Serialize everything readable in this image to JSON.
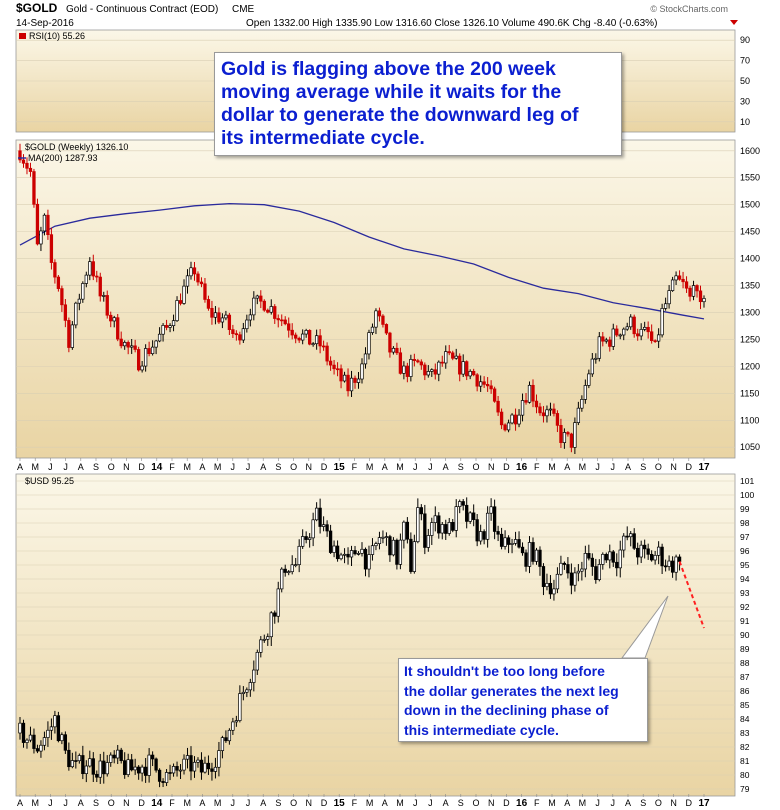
{
  "header": {
    "symbol": "$GOLD",
    "description": "Gold - Continuous Contract (EOD)",
    "exchange": "CME",
    "date": "14-Sep-2016",
    "ohlc": "Open 1332.00  High 1335.90  Low 1316.60  Close 1326.10  Volume 490.6K  Chg -8.40 (-0.63%)",
    "watermark": "© StockCharts.com"
  },
  "colors": {
    "panel_bg_top": "#fbf7e8",
    "panel_bg_bottom": "#e9d4a3",
    "up_candle": "#000000",
    "down_candle": "#cc0000",
    "ma_line": "#2a2a9c",
    "projection": "#ff2020",
    "callout_text": "#0b1fd0"
  },
  "annotations": {
    "gold_callout": [
      "Gold is flagging above the 200 week",
      "moving average while it waits for the",
      "dollar to generate the downward leg of",
      "its intermediate cycle."
    ],
    "usd_callout": [
      "It shouldn't be too long before",
      "the dollar generates the next leg",
      "down in the declining phase of",
      "this intermediate cycle."
    ]
  },
  "chart_data": [
    {
      "type": "line",
      "panel": "rsi",
      "label": "RSI(10) 55.26",
      "ylim": [
        0,
        100
      ],
      "y_ticks": [
        10,
        30,
        50,
        70,
        90
      ],
      "last_value": 55.26
    },
    {
      "type": "candlestick",
      "panel": "gold",
      "label": "$GOLD (Weekly) 1326.10",
      "ma_label": "MA(200) 1287.93",
      "ylim": [
        1030,
        1620
      ],
      "y_ticks": [
        1050,
        1100,
        1150,
        1200,
        1250,
        1300,
        1350,
        1400,
        1450,
        1500,
        1550,
        1600
      ],
      "x_labels": [
        "A",
        "M",
        "J",
        "J",
        "A",
        "S",
        "O",
        "N",
        "D",
        "14",
        "F",
        "M",
        "A",
        "M",
        "J",
        "J",
        "A",
        "S",
        "O",
        "N",
        "D",
        "15",
        "F",
        "M",
        "A",
        "M",
        "J",
        "J",
        "A",
        "S",
        "O",
        "N",
        "D",
        "16",
        "F",
        "M",
        "A",
        "M",
        "J",
        "J",
        "A",
        "S",
        "O",
        "N",
        "D",
        "17"
      ],
      "close_path": {
        "x": [
          0,
          3,
          5,
          7,
          9,
          11,
          14,
          17,
          20,
          23,
          26,
          30,
          34,
          38,
          42,
          46,
          50,
          54,
          58,
          62,
          66,
          70,
          74,
          78,
          82,
          86,
          90,
          94,
          98,
          102,
          106,
          110,
          114,
          118,
          122,
          126,
          130,
          134,
          138,
          142,
          144,
          146,
          149,
          152,
          155,
          158,
          160,
          163,
          166,
          169,
          172,
          175,
          178,
          180,
          182,
          184,
          186,
          188,
          190
        ],
        "y": [
          1600,
          1560,
          1420,
          1470,
          1390,
          1350,
          1250,
          1330,
          1400,
          1330,
          1290,
          1240,
          1210,
          1240,
          1270,
          1330,
          1380,
          1300,
          1290,
          1250,
          1310,
          1320,
          1295,
          1270,
          1250,
          1240,
          1190,
          1160,
          1200,
          1300,
          1230,
          1190,
          1205,
          1180,
          1215,
          1200,
          1185,
          1160,
          1090,
          1110,
          1140,
          1160,
          1120,
          1110,
          1070,
          1060,
          1110,
          1190,
          1240,
          1250,
          1270,
          1280,
          1260,
          1260,
          1230,
          1300,
          1330,
          1360,
          1350
        ]
      },
      "tail": [
        1345,
        1330,
        1350,
        1340,
        1320,
        1326.1
      ],
      "ma200": {
        "x": [
          0,
          10,
          20,
          30,
          40,
          50,
          60,
          70,
          80,
          90,
          100,
          110,
          120,
          130,
          140,
          150,
          160,
          170,
          180,
          190,
          196
        ],
        "y": [
          1425,
          1460,
          1475,
          1483,
          1490,
          1498,
          1502,
          1500,
          1488,
          1467,
          1440,
          1418,
          1405,
          1390,
          1365,
          1345,
          1335,
          1318,
          1307,
          1295,
          1288
        ]
      }
    },
    {
      "type": "candlestick",
      "panel": "usd",
      "label": "$USD 95.25",
      "ylim": [
        78.5,
        101.5
      ],
      "y_ticks": [
        79,
        80,
        81,
        82,
        83,
        84,
        85,
        86,
        87,
        88,
        89,
        90,
        91,
        92,
        93,
        94,
        95,
        96,
        97,
        98,
        99,
        100,
        101
      ],
      "x_labels": [
        "A",
        "M",
        "J",
        "J",
        "A",
        "S",
        "O",
        "N",
        "D",
        "14",
        "F",
        "M",
        "A",
        "M",
        "J",
        "J",
        "A",
        "S",
        "O",
        "N",
        "D",
        "15",
        "F",
        "M",
        "A",
        "M",
        "J",
        "J",
        "A",
        "S",
        "O",
        "N",
        "D",
        "16",
        "F",
        "M",
        "A",
        "M",
        "J",
        "J",
        "A",
        "S",
        "O",
        "N",
        "D",
        "17"
      ],
      "close_path": {
        "x": [
          0,
          5,
          8,
          10,
          13,
          16,
          19,
          22,
          25,
          28,
          31,
          34,
          37,
          40,
          43,
          46,
          49,
          52,
          55,
          58,
          61,
          64,
          67,
          70,
          73,
          76,
          79,
          82,
          85,
          88,
          91,
          94,
          97,
          100,
          103,
          106,
          108,
          110,
          112,
          114,
          116,
          118,
          120,
          123,
          126,
          129,
          132,
          135,
          138,
          141,
          144,
          147,
          150,
          153,
          156,
          159,
          162,
          165,
          168,
          171,
          174,
          177,
          180,
          183,
          186,
          189
        ],
        "y": [
          83,
          82,
          83,
          84,
          81.5,
          80.5,
          81,
          80.5,
          80.7,
          81,
          80.3,
          80.6,
          80.8,
          80.2,
          79.8,
          80.5,
          80.7,
          80.3,
          81,
          82,
          84,
          86,
          88,
          90,
          92,
          95,
          95,
          97,
          98.5,
          97,
          96,
          95,
          96.5,
          95,
          97,
          96.5,
          95.5,
          97.5,
          95,
          99,
          97,
          98,
          98,
          97.5,
          99,
          98,
          97,
          98.5,
          96,
          97,
          95.5,
          96,
          94,
          93.5,
          95,
          94,
          95.5,
          94.5,
          96,
          95.5,
          97,
          96,
          95.5,
          95.8,
          95,
          95.25
        ]
      },
      "projection": {
        "from": [
          189,
          95.25
        ],
        "to": [
          196,
          90.5
        ]
      }
    }
  ]
}
